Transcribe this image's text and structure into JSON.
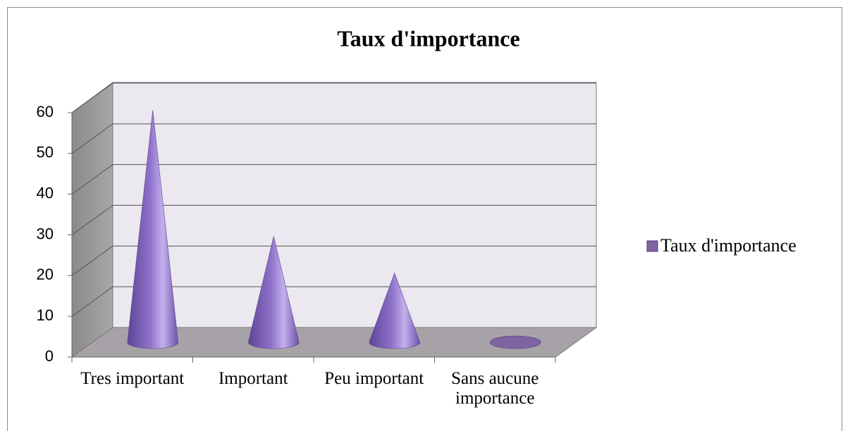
{
  "chart_data": {
    "type": "cone3d",
    "title": "Taux d'importance",
    "categories": [
      "Tres important",
      "Important",
      "Peu important",
      "Sans aucune importance"
    ],
    "series": [
      {
        "name": "Taux d'importance",
        "color": "#8064a2",
        "values": [
          57,
          26,
          17,
          0
        ]
      }
    ],
    "ylim": [
      0,
      60
    ],
    "yticks": [
      0,
      10,
      20,
      30,
      40,
      50,
      60
    ],
    "grid": true,
    "legend": "right"
  }
}
